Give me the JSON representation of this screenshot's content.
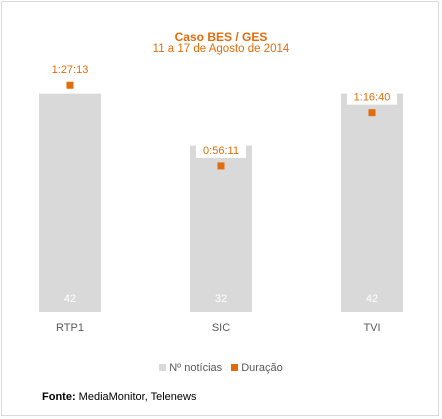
{
  "chart_data": {
    "type": "bar",
    "title": "Caso BES / GES",
    "subtitle": "11 a 17 de Agosto de 2014",
    "categories": [
      "RTP1",
      "SIC",
      "TVI"
    ],
    "series": [
      {
        "name": "Nº notícias",
        "kind": "bar",
        "values": [
          42,
          32,
          42
        ],
        "color": "#d9d9d9"
      },
      {
        "name": "Duração",
        "kind": "point",
        "values": [
          "1:27:13",
          "0:56:11",
          "1:16:40"
        ],
        "seconds": [
          5233,
          3371,
          4600
        ],
        "color": "#e36c0a"
      }
    ],
    "ylim_count": [
      0,
      50
    ],
    "ylim_duration_seconds": [
      0,
      6000
    ],
    "grid": false,
    "legend_position": "bottom"
  },
  "legend": {
    "items": [
      {
        "label": "Nº notícias",
        "color": "#d9d9d9"
      },
      {
        "label": "Duração",
        "color": "#e36c0a"
      }
    ]
  },
  "footer": {
    "source_label": "Fonte:",
    "source_text": "MediaMonitor, Telenews"
  }
}
